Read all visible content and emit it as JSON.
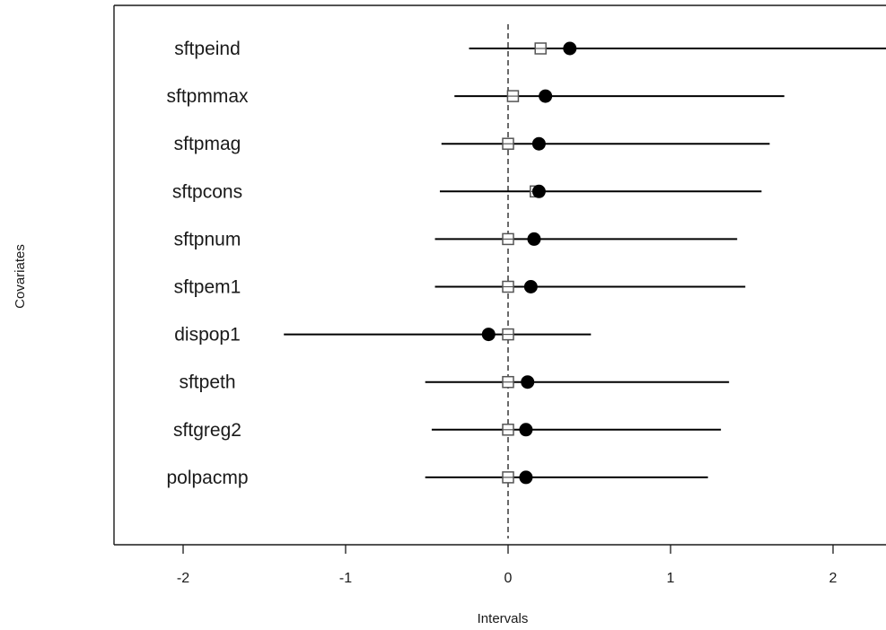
{
  "chart_data": {
    "type": "scatter",
    "subtype": "forest-plot",
    "title": "",
    "xlabel": "Intervals",
    "ylabel": "Covariates",
    "xlim": [
      -2.4,
      2.35
    ],
    "xticks": [
      -2,
      -1,
      0,
      1,
      2
    ],
    "xtick_labels": [
      "-2",
      "-1",
      "0",
      "1",
      "2"
    ],
    "reference_line_x": 0,
    "grid": false,
    "legend": "none",
    "colors": {
      "axis": "#1a1a1a",
      "marker": "#000000",
      "open_marker_stroke": "#555555"
    },
    "categories": [
      "sftpeind",
      "sftpmmax",
      "sftpmag",
      "sftpcons",
      "sftpnum",
      "sftpem1",
      "dispop1",
      "sftpeth",
      "sftgreg2",
      "polpacmp"
    ],
    "series": [
      {
        "marker": "open-square",
        "values": [
          0.2,
          0.03,
          0.0,
          0.17,
          0.0,
          0.0,
          0.0,
          0.0,
          0.0,
          0.0
        ]
      },
      {
        "marker": "filled-circle",
        "values": [
          0.38,
          0.23,
          0.19,
          0.19,
          0.16,
          0.14,
          -0.12,
          0.12,
          0.11,
          0.11
        ]
      }
    ],
    "intervals": [
      {
        "low": -0.24,
        "high": 2.35
      },
      {
        "low": -0.33,
        "high": 1.7
      },
      {
        "low": -0.41,
        "high": 1.61
      },
      {
        "low": -0.42,
        "high": 1.56
      },
      {
        "low": -0.45,
        "high": 1.41
      },
      {
        "low": -0.45,
        "high": 1.46
      },
      {
        "low": -1.38,
        "high": 0.51
      },
      {
        "low": -0.51,
        "high": 1.36
      },
      {
        "low": -0.47,
        "high": 1.31
      },
      {
        "low": -0.51,
        "high": 1.23
      }
    ]
  }
}
